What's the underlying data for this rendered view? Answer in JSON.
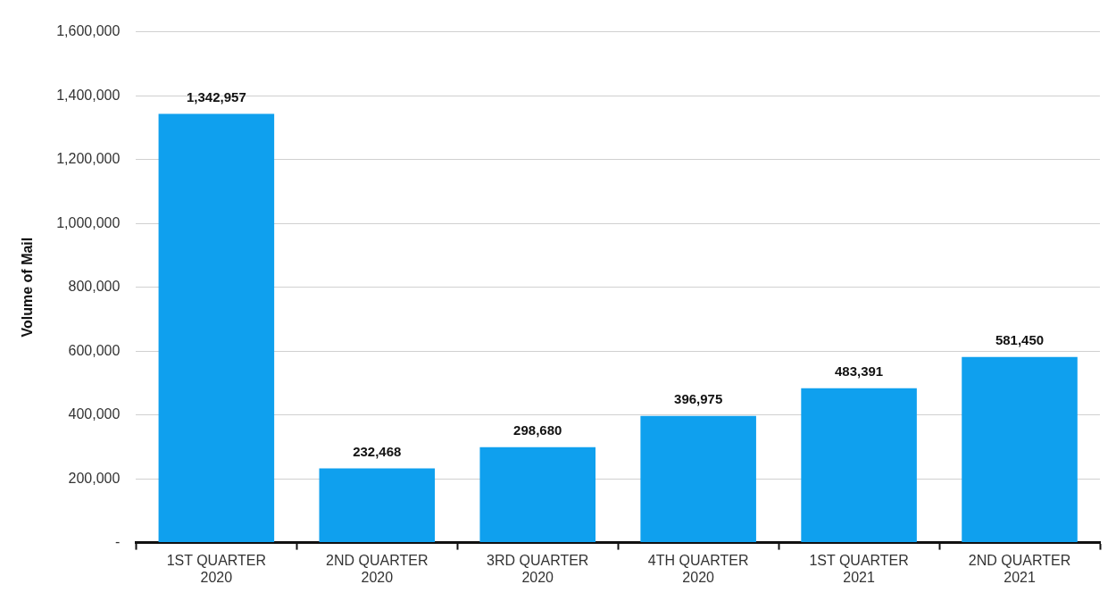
{
  "chart_data": {
    "type": "bar",
    "ylabel": "Volume of Mail",
    "categories": [
      "1ST QUARTER 2020",
      "2ND QUARTER 2020",
      "3RD QUARTER 2020",
      "4TH QUARTER 2020",
      "1ST QUARTER 2021",
      "2ND QUARTER 2021"
    ],
    "values": [
      1342957,
      232468,
      298680,
      396975,
      483391,
      581450
    ],
    "value_labels": [
      "1,342,957",
      "232,468",
      "298,680",
      "396,975",
      "483,391",
      "581,450"
    ],
    "color": "#0fa0ee",
    "ylim": [
      0,
      1600000
    ],
    "yticks": [
      {
        "value": 0,
        "label": "-"
      },
      {
        "value": 200000,
        "label": "200,000"
      },
      {
        "value": 400000,
        "label": "400,000"
      },
      {
        "value": 600000,
        "label": "600,000"
      },
      {
        "value": 800000,
        "label": "800,000"
      },
      {
        "value": 1000000,
        "label": "1,000,000"
      },
      {
        "value": 1200000,
        "label": "1,200,000"
      },
      {
        "value": 1400000,
        "label": "1,400,000"
      },
      {
        "value": 1600000,
        "label": "1,600,000"
      }
    ],
    "grid": "y",
    "legend": false
  }
}
